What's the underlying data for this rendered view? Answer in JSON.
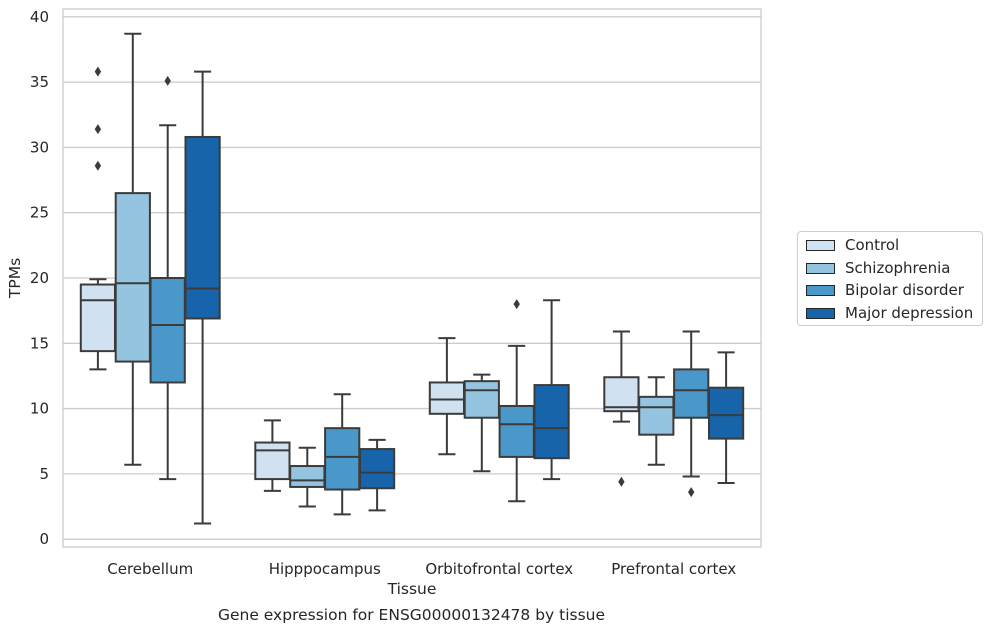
{
  "chart_data": {
    "type": "box",
    "xlabel": "Tissue",
    "ylabel": "TPMs",
    "caption": "Gene expression for ENSG00000132478 by tissue",
    "ylim": [
      -0.6,
      40.6
    ],
    "yticks": [
      0,
      5,
      10,
      15,
      20,
      25,
      30,
      35,
      40
    ],
    "grid": "horizontal",
    "legend_position": "right",
    "categories": [
      "Cerebellum",
      "Hipppocampus",
      "Orbitofrontal cortex",
      "Prefrontal cortex"
    ],
    "series": [
      {
        "name": "Control",
        "color": "#d0e1f2",
        "boxes": [
          {
            "whisker_low": 13.0,
            "q1": 14.4,
            "median": 18.3,
            "q3": 19.5,
            "whisker_high": 19.9,
            "outliers": [
              28.6,
              31.4,
              35.8
            ]
          },
          {
            "whisker_low": 3.7,
            "q1": 4.6,
            "median": 6.8,
            "q3": 7.4,
            "whisker_high": 9.1,
            "outliers": []
          },
          {
            "whisker_low": 6.5,
            "q1": 9.6,
            "median": 10.7,
            "q3": 12.0,
            "whisker_high": 15.4,
            "outliers": []
          },
          {
            "whisker_low": 9.0,
            "q1": 9.8,
            "median": 10.1,
            "q3": 12.4,
            "whisker_high": 15.9,
            "outliers": [
              4.4
            ]
          }
        ]
      },
      {
        "name": "Schizophrenia",
        "color": "#94c4df",
        "boxes": [
          {
            "whisker_low": 5.7,
            "q1": 13.6,
            "median": 19.6,
            "q3": 26.5,
            "whisker_high": 38.7,
            "outliers": []
          },
          {
            "whisker_low": 2.5,
            "q1": 4.0,
            "median": 4.5,
            "q3": 5.6,
            "whisker_high": 7.0,
            "outliers": []
          },
          {
            "whisker_low": 5.2,
            "q1": 9.3,
            "median": 11.4,
            "q3": 12.1,
            "whisker_high": 12.6,
            "outliers": []
          },
          {
            "whisker_low": 5.7,
            "q1": 8.0,
            "median": 10.1,
            "q3": 10.9,
            "whisker_high": 12.4,
            "outliers": []
          }
        ]
      },
      {
        "name": "Bipolar disorder",
        "color": "#4a98c9",
        "boxes": [
          {
            "whisker_low": 4.6,
            "q1": 12.0,
            "median": 16.4,
            "q3": 20.0,
            "whisker_high": 31.7,
            "outliers": [
              35.1
            ]
          },
          {
            "whisker_low": 1.9,
            "q1": 3.8,
            "median": 6.3,
            "q3": 8.5,
            "whisker_high": 11.1,
            "outliers": []
          },
          {
            "whisker_low": 2.9,
            "q1": 6.3,
            "median": 8.8,
            "q3": 10.2,
            "whisker_high": 14.8,
            "outliers": [
              18.0
            ]
          },
          {
            "whisker_low": 4.8,
            "q1": 9.3,
            "median": 11.4,
            "q3": 13.0,
            "whisker_high": 15.9,
            "outliers": [
              3.6
            ]
          }
        ]
      },
      {
        "name": "Major depression",
        "color": "#1764ab",
        "boxes": [
          {
            "whisker_low": 1.2,
            "q1": 16.9,
            "median": 19.2,
            "q3": 30.8,
            "whisker_high": 35.8,
            "outliers": []
          },
          {
            "whisker_low": 2.2,
            "q1": 3.9,
            "median": 5.1,
            "q3": 6.9,
            "whisker_high": 7.6,
            "outliers": []
          },
          {
            "whisker_low": 4.6,
            "q1": 6.2,
            "median": 8.5,
            "q3": 11.8,
            "whisker_high": 18.3,
            "outliers": []
          },
          {
            "whisker_low": 4.3,
            "q1": 7.7,
            "median": 9.5,
            "q3": 11.6,
            "whisker_high": 14.3,
            "outliers": []
          }
        ]
      }
    ]
  }
}
